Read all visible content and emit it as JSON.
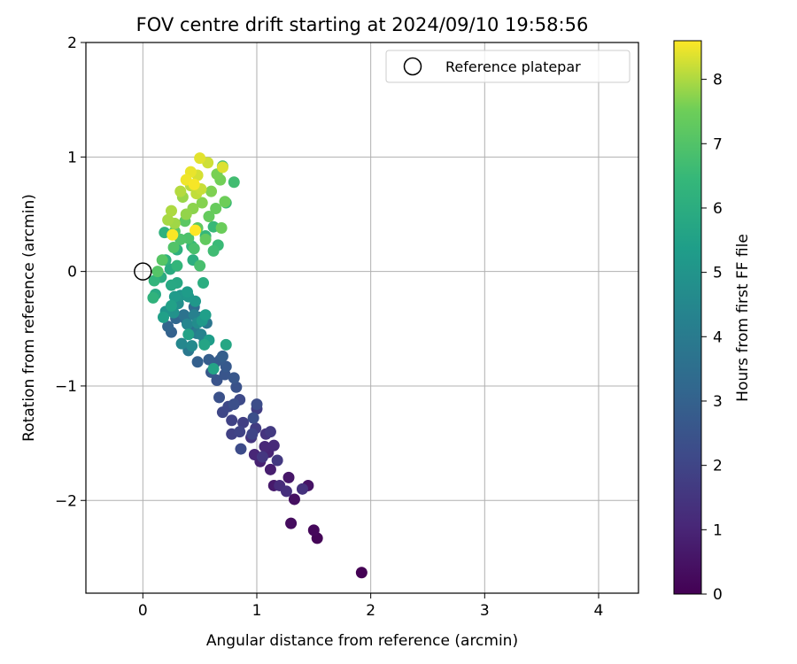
{
  "chart_data": {
    "type": "scatter",
    "title": "FOV centre drift starting at 2024/09/10 19:58:56",
    "xlabel": "Angular distance from reference (arcmin)",
    "ylabel": "Rotation from reference (arcmin)",
    "xlim": [
      -0.5,
      4.35
    ],
    "ylim": [
      -2.81,
      2.0
    ],
    "xticks": [
      0,
      1,
      2,
      3,
      4
    ],
    "xtick_labels": [
      "0",
      "1",
      "2",
      "3",
      "4"
    ],
    "yticks": [
      -2,
      -1,
      0,
      1,
      2
    ],
    "ytick_labels": [
      "−2",
      "−1",
      "0",
      "1",
      "2"
    ],
    "grid": true,
    "legend": {
      "placement": "top-right",
      "entries": [
        "Reference platepar"
      ]
    },
    "reference_point": {
      "x": 0.0,
      "y": 0.0
    },
    "colorbar": {
      "label": "Hours from first FF file",
      "colormap": "viridis",
      "range": [
        0,
        8.6
      ],
      "ticks": [
        0,
        1,
        2,
        3,
        4,
        5,
        6,
        7,
        8
      ],
      "tick_labels": [
        "0",
        "1",
        "2",
        "3",
        "4",
        "5",
        "6",
        "7",
        "8"
      ]
    },
    "series": [
      {
        "points": [
          [
            1.92,
            -2.63,
            0.0
          ],
          [
            1.53,
            -2.33,
            0.1
          ],
          [
            1.5,
            -2.26,
            0.2
          ],
          [
            1.3,
            -2.2,
            0.3
          ],
          [
            1.33,
            -1.99,
            0.4
          ],
          [
            1.45,
            -1.87,
            0.5
          ],
          [
            1.28,
            -1.8,
            0.6
          ],
          [
            1.15,
            -1.87,
            0.7
          ],
          [
            1.12,
            -1.73,
            0.8
          ],
          [
            1.03,
            -1.66,
            0.9
          ],
          [
            1.1,
            -1.58,
            1.0
          ],
          [
            0.98,
            -1.6,
            1.05
          ],
          [
            1.07,
            -1.53,
            1.1
          ],
          [
            1.15,
            -1.52,
            1.15
          ],
          [
            1.2,
            -1.87,
            1.2
          ],
          [
            1.26,
            -1.92,
            1.3
          ],
          [
            1.4,
            -1.9,
            1.4
          ],
          [
            1.08,
            -1.42,
            1.45
          ],
          [
            0.95,
            -1.45,
            1.5
          ],
          [
            1.05,
            -1.62,
            1.55
          ],
          [
            1.18,
            -1.65,
            1.6
          ],
          [
            1.12,
            -1.4,
            1.65
          ],
          [
            0.99,
            -1.37,
            1.7
          ],
          [
            1.0,
            -1.2,
            1.75
          ],
          [
            0.88,
            -1.32,
            1.8
          ],
          [
            0.78,
            -1.42,
            1.85
          ],
          [
            0.78,
            -1.3,
            1.9
          ],
          [
            0.85,
            -1.4,
            1.95
          ],
          [
            0.96,
            -1.42,
            2.0
          ],
          [
            0.7,
            -1.23,
            2.05
          ],
          [
            0.75,
            -1.18,
            2.1
          ],
          [
            0.85,
            -1.12,
            2.15
          ],
          [
            0.86,
            -1.55,
            2.2
          ],
          [
            1.0,
            -1.16,
            2.25
          ],
          [
            0.97,
            -1.28,
            2.3
          ],
          [
            0.8,
            -1.16,
            2.35
          ],
          [
            0.67,
            -1.1,
            2.4
          ],
          [
            0.82,
            -1.01,
            2.45
          ],
          [
            0.65,
            -0.95,
            2.5
          ],
          [
            0.72,
            -0.9,
            2.55
          ],
          [
            0.8,
            -0.93,
            2.6
          ],
          [
            0.6,
            -0.88,
            2.65
          ],
          [
            0.73,
            -0.83,
            2.7
          ],
          [
            0.68,
            -0.77,
            2.75
          ],
          [
            0.63,
            -0.8,
            2.8
          ],
          [
            0.58,
            -0.77,
            2.85
          ],
          [
            0.7,
            -0.74,
            2.9
          ],
          [
            0.48,
            -0.79,
            2.95
          ],
          [
            0.25,
            -0.53,
            3.0
          ],
          [
            0.22,
            -0.48,
            3.1
          ],
          [
            0.29,
            -0.41,
            3.2
          ],
          [
            0.37,
            -0.41,
            3.3
          ],
          [
            0.45,
            -0.31,
            3.4
          ],
          [
            0.49,
            -0.4,
            3.5
          ],
          [
            0.43,
            -0.52,
            3.6
          ],
          [
            0.36,
            -0.38,
            3.7
          ],
          [
            0.56,
            -0.45,
            3.8
          ],
          [
            0.4,
            -0.69,
            3.9
          ],
          [
            0.47,
            -0.54,
            4.0
          ],
          [
            0.54,
            -0.62,
            4.1
          ],
          [
            0.45,
            -0.38,
            4.2
          ],
          [
            0.51,
            -0.55,
            4.3
          ],
          [
            0.39,
            -0.46,
            4.4
          ],
          [
            0.34,
            -0.63,
            4.5
          ],
          [
            0.43,
            -0.65,
            4.6
          ],
          [
            0.48,
            -0.45,
            4.7
          ],
          [
            0.31,
            -0.28,
            4.8
          ],
          [
            0.27,
            -0.36,
            4.9
          ],
          [
            0.2,
            -0.35,
            5.0
          ],
          [
            0.33,
            -0.21,
            5.05
          ],
          [
            0.4,
            -0.22,
            5.1
          ],
          [
            0.46,
            -0.26,
            5.15
          ],
          [
            0.52,
            -0.43,
            5.2
          ],
          [
            0.28,
            -0.22,
            5.25
          ],
          [
            0.39,
            -0.18,
            5.3
          ],
          [
            0.58,
            -0.6,
            5.35
          ],
          [
            0.55,
            -0.38,
            5.4
          ],
          [
            0.18,
            -0.4,
            5.45
          ],
          [
            0.25,
            -0.3,
            5.5
          ],
          [
            0.4,
            -0.55,
            5.55
          ],
          [
            0.62,
            -0.85,
            5.6
          ],
          [
            0.54,
            -0.64,
            5.65
          ],
          [
            0.73,
            -0.64,
            5.7
          ],
          [
            0.3,
            -0.1,
            5.75
          ],
          [
            0.25,
            -0.12,
            5.8
          ],
          [
            0.11,
            -0.2,
            5.85
          ],
          [
            0.24,
            0.02,
            5.9
          ],
          [
            0.16,
            -0.05,
            5.95
          ],
          [
            0.53,
            -0.1,
            6.0
          ],
          [
            0.44,
            0.1,
            6.05
          ],
          [
            0.3,
            0.19,
            6.1
          ],
          [
            0.2,
            0.1,
            6.15
          ],
          [
            0.19,
            0.34,
            6.2
          ],
          [
            0.09,
            -0.23,
            6.25
          ],
          [
            0.1,
            -0.08,
            6.3
          ],
          [
            0.3,
            0.05,
            6.35
          ],
          [
            0.43,
            0.22,
            6.4
          ],
          [
            0.55,
            0.31,
            6.45
          ],
          [
            0.62,
            0.39,
            6.5
          ],
          [
            0.66,
            0.23,
            6.55
          ],
          [
            0.73,
            0.6,
            6.6
          ],
          [
            0.62,
            0.18,
            6.65
          ],
          [
            0.8,
            0.78,
            6.7
          ],
          [
            0.7,
            0.92,
            6.75
          ],
          [
            0.5,
            0.05,
            6.8
          ],
          [
            0.45,
            0.2,
            6.85
          ],
          [
            0.4,
            0.29,
            6.9
          ],
          [
            0.33,
            0.28,
            6.95
          ],
          [
            0.27,
            0.21,
            7.0
          ],
          [
            0.13,
            0.0,
            7.05
          ],
          [
            0.17,
            0.1,
            7.1
          ],
          [
            0.28,
            0.35,
            7.15
          ],
          [
            0.37,
            0.44,
            7.2
          ],
          [
            0.48,
            0.38,
            7.25
          ],
          [
            0.55,
            0.28,
            7.3
          ],
          [
            0.58,
            0.48,
            7.35
          ],
          [
            0.64,
            0.55,
            7.4
          ],
          [
            0.69,
            0.38,
            7.45
          ],
          [
            0.72,
            0.61,
            7.5
          ],
          [
            0.68,
            0.8,
            7.55
          ],
          [
            0.65,
            0.85,
            7.6
          ],
          [
            0.6,
            0.7,
            7.65
          ],
          [
            0.52,
            0.6,
            7.7
          ],
          [
            0.44,
            0.55,
            7.75
          ],
          [
            0.38,
            0.5,
            7.8
          ],
          [
            0.35,
            0.65,
            7.85
          ],
          [
            0.28,
            0.42,
            7.9
          ],
          [
            0.22,
            0.45,
            7.95
          ],
          [
            0.25,
            0.53,
            8.0
          ],
          [
            0.33,
            0.7,
            8.05
          ],
          [
            0.42,
            0.75,
            8.1
          ],
          [
            0.47,
            0.68,
            8.15
          ],
          [
            0.51,
            0.72,
            8.2
          ],
          [
            0.57,
            0.95,
            8.25
          ],
          [
            0.48,
            0.84,
            8.3
          ],
          [
            0.7,
            0.91,
            8.35
          ],
          [
            0.5,
            0.99,
            8.4
          ],
          [
            0.42,
            0.87,
            8.45
          ],
          [
            0.38,
            0.8,
            8.5
          ],
          [
            0.45,
            0.76,
            8.55
          ],
          [
            0.26,
            0.32,
            8.58
          ],
          [
            0.46,
            0.36,
            8.6
          ]
        ]
      }
    ]
  }
}
